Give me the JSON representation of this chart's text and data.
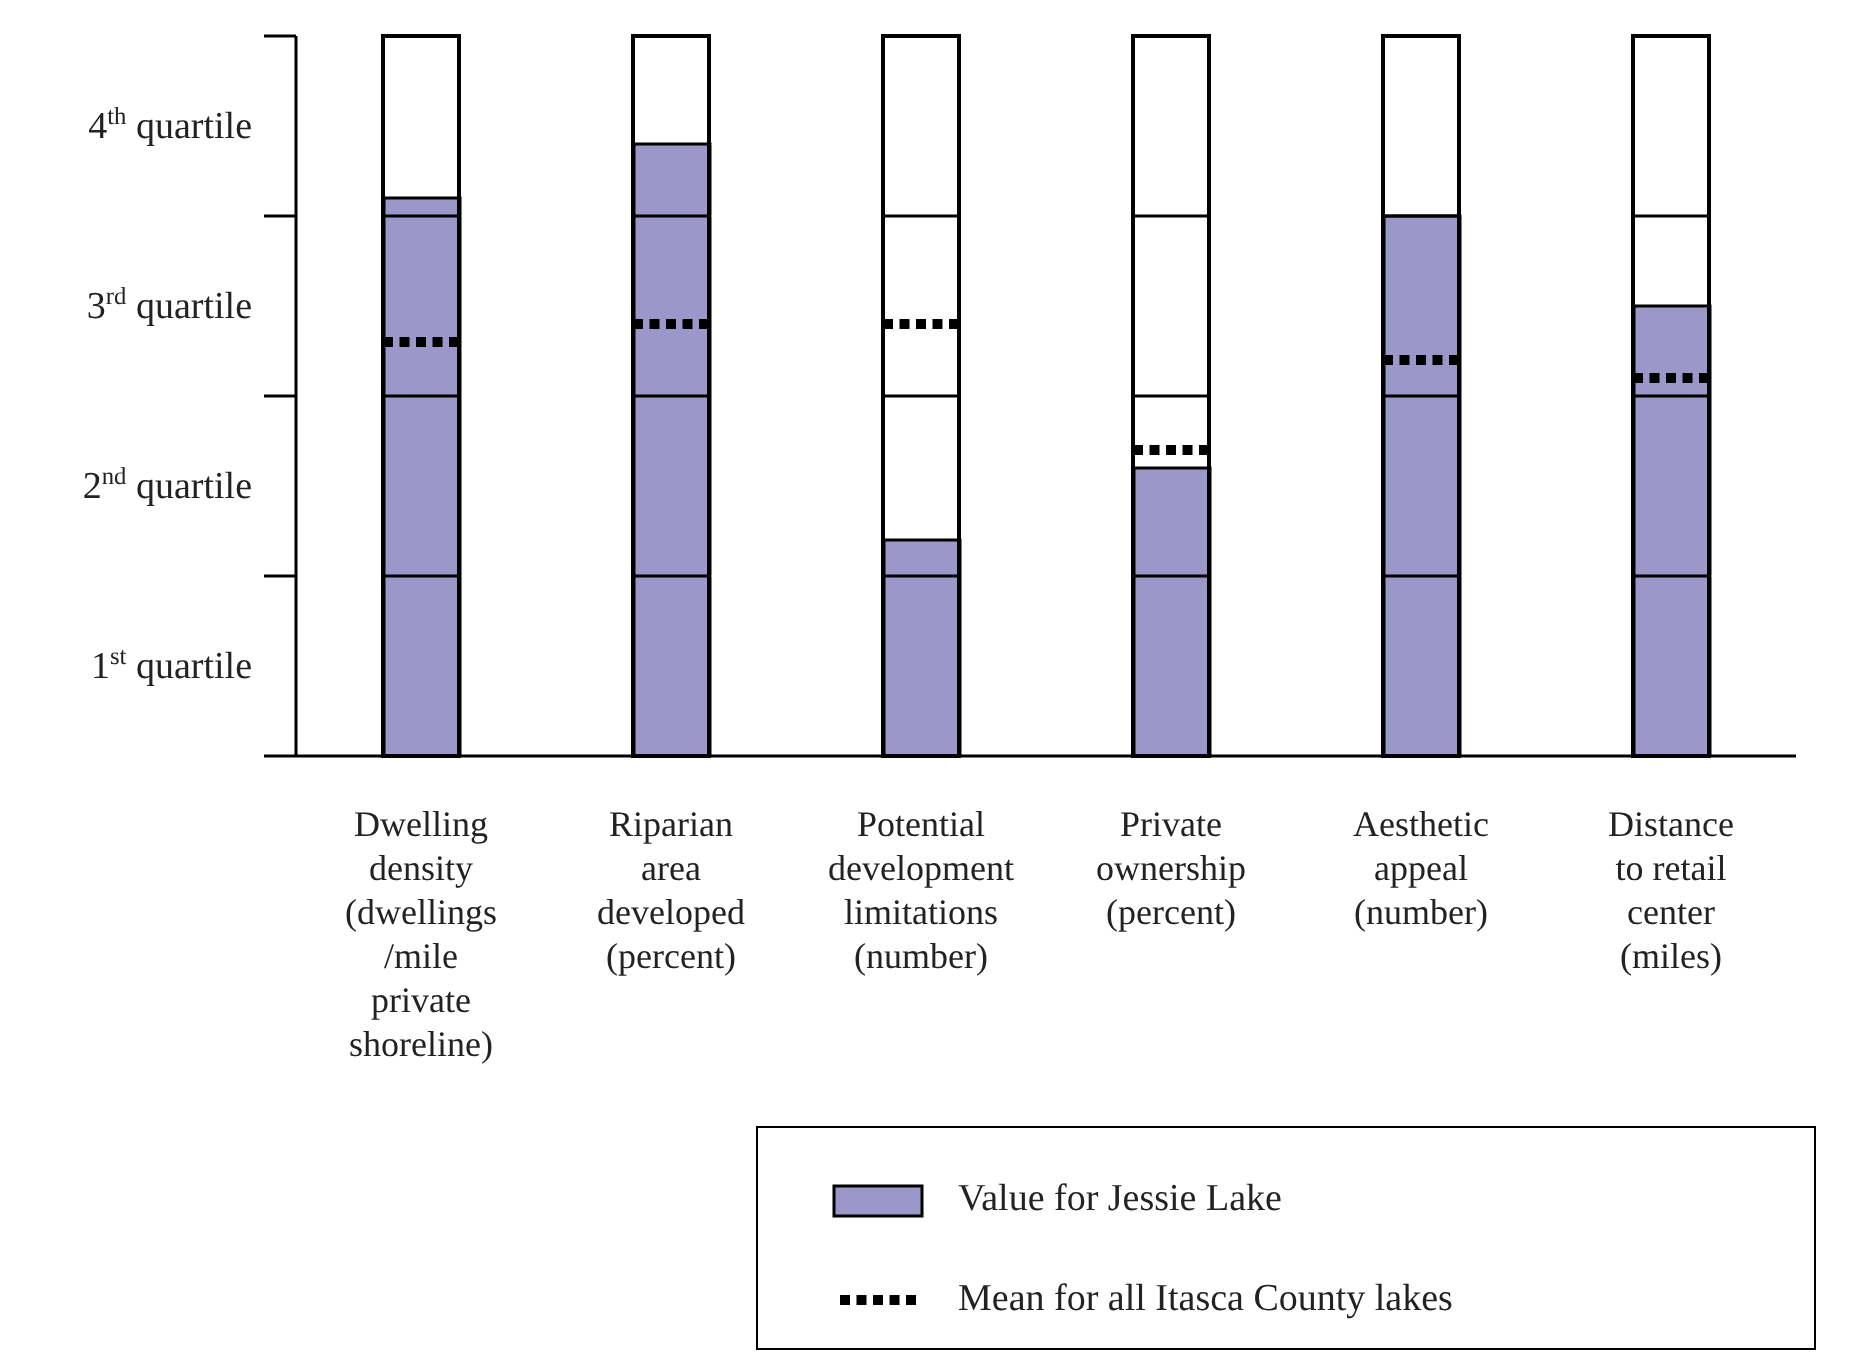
{
  "chart_data": {
    "type": "bar",
    "categories": [
      "Dwelling\ndensity\n(dwellings\n/mile\nprivate\nshoreline)",
      "Riparian\narea\ndeveloped\n(percent)",
      "Potential\ndevelopment\nlimitations\n(number)",
      "Private\nownership\n(percent)",
      "Aesthetic\nappeal\n(number)",
      "Distance\nto retail\ncenter\n(miles)"
    ],
    "series": [
      {
        "name": "Value for Jessie Lake",
        "type": "bar",
        "color": "#9b97c9",
        "values": [
          3.1,
          3.4,
          1.2,
          1.6,
          3.0,
          2.5
        ]
      },
      {
        "name": "Mean for all Itasca County lakes",
        "type": "scatter",
        "color": "#000000",
        "line_style": "dotted",
        "values": [
          2.3,
          2.4,
          2.4,
          1.7,
          2.2,
          2.1
        ]
      }
    ],
    "ylim": [
      0,
      4
    ],
    "yticks": [
      {
        "value": 0,
        "label": null
      },
      {
        "value": 0.5,
        "label": "1$^{st}$ quartile"
      },
      {
        "value": 1,
        "label": null
      },
      {
        "value": 1.5,
        "label": "2$^{nd}$ quartile"
      },
      {
        "value": 2,
        "label": null
      },
      {
        "value": 2.5,
        "label": "3$^{rd}$ quartile"
      },
      {
        "value": 3,
        "label": null
      },
      {
        "value": 3.5,
        "label": "4$^{th}$ quartile"
      },
      {
        "value": 4,
        "label": null
      }
    ],
    "legend": "bottom right"
  }
}
